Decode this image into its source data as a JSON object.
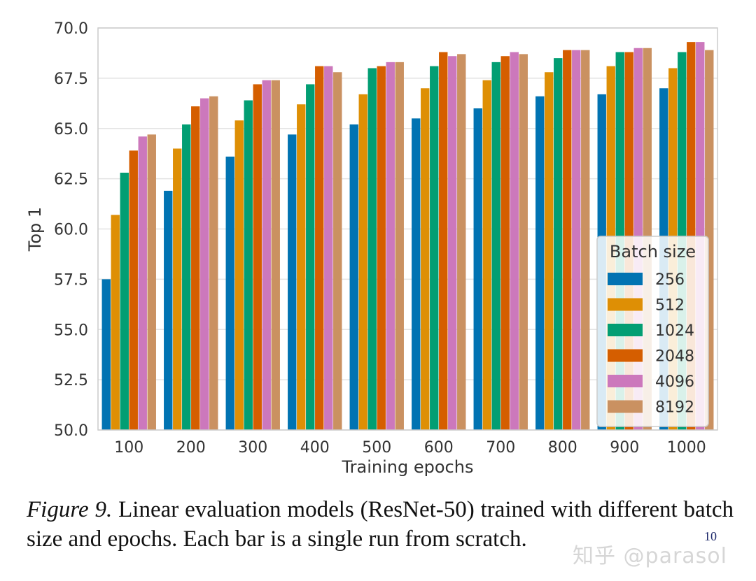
{
  "chart_data": {
    "type": "bar",
    "title": "",
    "xlabel": "Training epochs",
    "ylabel": "Top 1",
    "ylim": [
      50.0,
      70.0
    ],
    "yticks": [
      "50.0",
      "52.5",
      "55.0",
      "57.5",
      "60.0",
      "62.5",
      "65.0",
      "67.5",
      "70.0"
    ],
    "categories": [
      "100",
      "200",
      "300",
      "400",
      "500",
      "600",
      "700",
      "800",
      "900",
      "1000"
    ],
    "grid": "horizontal",
    "legend": {
      "title": "Batch size",
      "placement": "lower-right"
    },
    "series": [
      {
        "name": "256",
        "color": "#0173b2",
        "values": [
          57.5,
          61.9,
          63.6,
          64.7,
          65.2,
          65.5,
          66.0,
          66.6,
          66.7,
          67.0
        ]
      },
      {
        "name": "512",
        "color": "#de8f05",
        "values": [
          60.7,
          64.0,
          65.4,
          66.2,
          66.7,
          67.0,
          67.4,
          67.8,
          68.1,
          68.0
        ]
      },
      {
        "name": "1024",
        "color": "#029e73",
        "values": [
          62.8,
          65.2,
          66.4,
          67.2,
          68.0,
          68.1,
          68.3,
          68.5,
          68.8,
          68.8
        ]
      },
      {
        "name": "2048",
        "color": "#d55e00",
        "values": [
          63.9,
          66.1,
          67.2,
          68.1,
          68.1,
          68.8,
          68.6,
          68.9,
          68.8,
          69.3
        ]
      },
      {
        "name": "4096",
        "color": "#cc78bc",
        "values": [
          64.6,
          66.5,
          67.4,
          68.1,
          68.3,
          68.6,
          68.8,
          68.9,
          69.0,
          69.3
        ]
      },
      {
        "name": "8192",
        "color": "#ca9161",
        "values": [
          64.7,
          66.6,
          67.4,
          67.8,
          68.3,
          68.7,
          68.7,
          68.9,
          69.0,
          68.9
        ]
      }
    ]
  },
  "caption": {
    "label": "Figure 9.",
    "text": " Linear evaluation models (ResNet-50) trained with different batch size and epochs. Each bar is a single run from scratch.",
    "page_number": "10"
  },
  "watermark": "知乎 @parasol"
}
